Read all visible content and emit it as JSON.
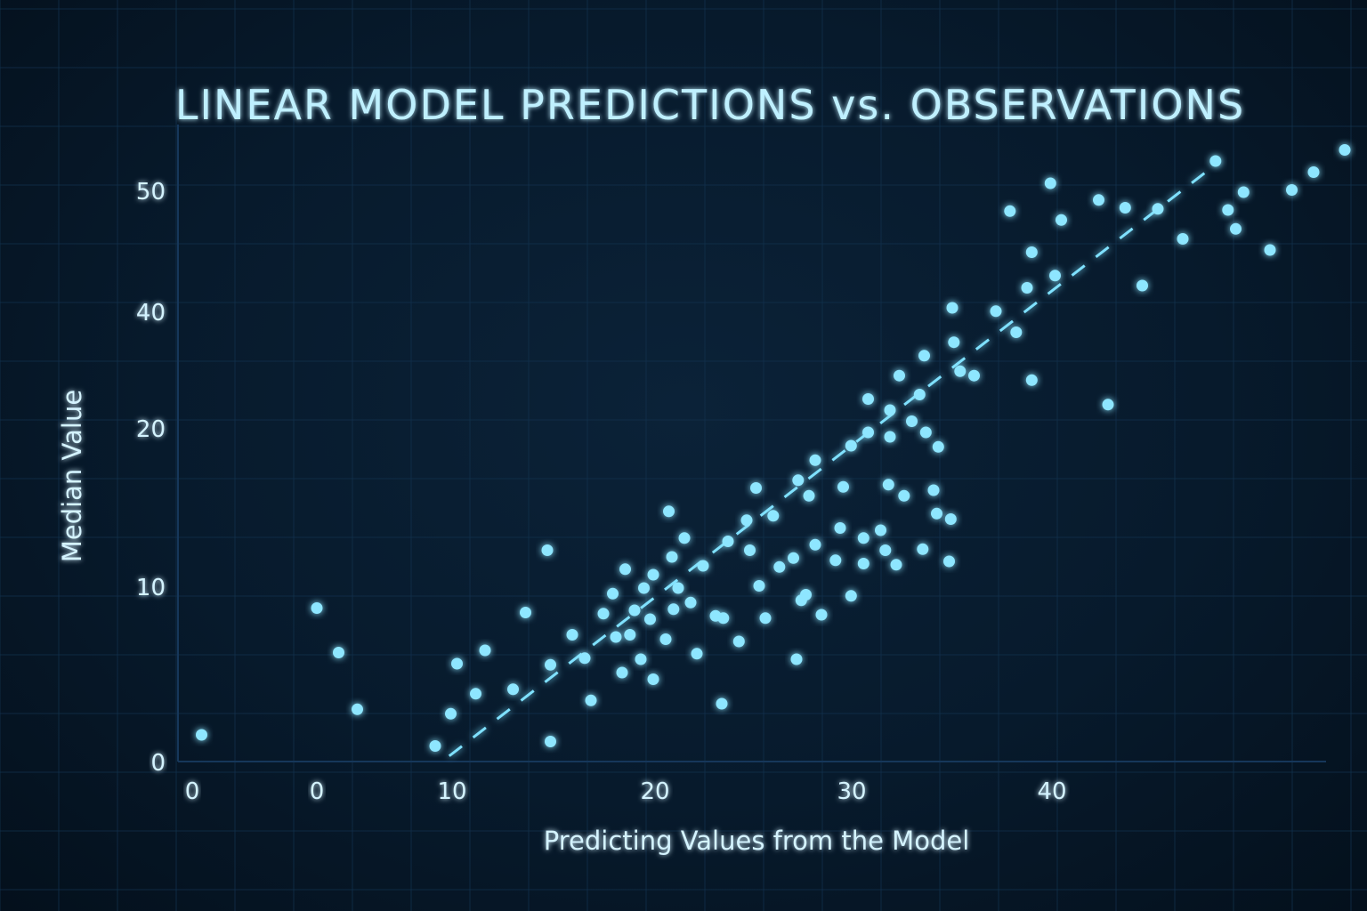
{
  "chart_data": {
    "type": "scatter",
    "title": "LINEAR MODEL PREDICTIONS vs. OBSERVATIONS",
    "xlabel": "Predicting Values from the Model",
    "ylabel": "Median Value",
    "x_ticks": [
      "0",
      "0",
      "10",
      "20",
      "30",
      "40"
    ],
    "y_ticks": [
      "0",
      "10",
      "20",
      "40",
      "50"
    ],
    "grid": true,
    "fit_line": {
      "style": "dashed",
      "x": [
        8.5,
        58.0
      ],
      "y": [
        0.5,
        54.0
      ]
    },
    "points": [
      [
        -7.4,
        2.4
      ],
      [
        0.0,
        13.8
      ],
      [
        1.4,
        9.8
      ],
      [
        2.6,
        4.7
      ],
      [
        7.6,
        1.4
      ],
      [
        8.6,
        4.3
      ],
      [
        9.0,
        8.8
      ],
      [
        10.2,
        6.1
      ],
      [
        10.8,
        10.0
      ],
      [
        12.6,
        6.5
      ],
      [
        13.4,
        13.4
      ],
      [
        15.0,
        8.7
      ],
      [
        15.0,
        1.8
      ],
      [
        14.8,
        19.0
      ],
      [
        16.4,
        11.4
      ],
      [
        17.2,
        9.3
      ],
      [
        17.6,
        5.5
      ],
      [
        18.4,
        13.3
      ],
      [
        19.0,
        15.1
      ],
      [
        19.2,
        11.2
      ],
      [
        19.6,
        8.0
      ],
      [
        20.1,
        11.4
      ],
      [
        19.8,
        17.3
      ],
      [
        20.4,
        13.6
      ],
      [
        20.8,
        9.2
      ],
      [
        21.0,
        15.6
      ],
      [
        21.4,
        12.8
      ],
      [
        21.6,
        16.8
      ],
      [
        21.6,
        7.4
      ],
      [
        22.4,
        11.0
      ],
      [
        22.6,
        22.5
      ],
      [
        22.8,
        18.4
      ],
      [
        22.9,
        13.7
      ],
      [
        23.2,
        15.6
      ],
      [
        23.6,
        20.1
      ],
      [
        24.0,
        14.3
      ],
      [
        24.4,
        9.7
      ],
      [
        24.8,
        17.6
      ],
      [
        25.6,
        13.1
      ],
      [
        26.0,
        5.2
      ],
      [
        26.1,
        12.9
      ],
      [
        26.4,
        19.8
      ],
      [
        27.1,
        10.8
      ],
      [
        27.6,
        21.7
      ],
      [
        27.8,
        19.0
      ],
      [
        28.2,
        24.6
      ],
      [
        28.4,
        15.8
      ],
      [
        28.8,
        12.9
      ],
      [
        29.3,
        22.1
      ],
      [
        29.7,
        17.5
      ],
      [
        30.6,
        18.3
      ],
      [
        30.8,
        9.2
      ],
      [
        30.9,
        25.3
      ],
      [
        31.1,
        14.5
      ],
      [
        31.4,
        15.0
      ],
      [
        31.6,
        23.9
      ],
      [
        32.0,
        27.1
      ],
      [
        32.0,
        19.5
      ],
      [
        32.4,
        13.2
      ],
      [
        33.3,
        18.1
      ],
      [
        33.6,
        21.0
      ],
      [
        33.8,
        24.7
      ],
      [
        34.3,
        28.4
      ],
      [
        34.3,
        14.9
      ],
      [
        35.1,
        17.8
      ],
      [
        35.1,
        20.1
      ],
      [
        35.4,
        29.6
      ],
      [
        35.4,
        32.6
      ],
      [
        36.2,
        20.8
      ],
      [
        36.5,
        19.0
      ],
      [
        36.7,
        24.9
      ],
      [
        36.8,
        31.6
      ],
      [
        36.8,
        29.2
      ],
      [
        37.2,
        17.7
      ],
      [
        37.4,
        34.7
      ],
      [
        37.7,
        23.9
      ],
      [
        38.2,
        30.6
      ],
      [
        38.7,
        33.0
      ],
      [
        38.9,
        19.1
      ],
      [
        39.0,
        36.5
      ],
      [
        39.1,
        29.6
      ],
      [
        39.6,
        24.4
      ],
      [
        39.8,
        22.3
      ],
      [
        39.9,
        28.3
      ],
      [
        40.6,
        18.0
      ],
      [
        40.7,
        21.8
      ],
      [
        40.8,
        40.8
      ],
      [
        40.9,
        37.7
      ],
      [
        41.3,
        35.1
      ],
      [
        42.2,
        34.7
      ],
      [
        43.6,
        40.5
      ],
      [
        44.5,
        49.5
      ],
      [
        44.9,
        38.6
      ],
      [
        45.6,
        42.6
      ],
      [
        45.9,
        45.8
      ],
      [
        45.9,
        34.3
      ],
      [
        47.1,
        52.0
      ],
      [
        47.4,
        43.7
      ],
      [
        47.8,
        48.7
      ],
      [
        50.2,
        50.5
      ],
      [
        50.8,
        32.1
      ],
      [
        51.9,
        49.8
      ],
      [
        53.0,
        42.8
      ],
      [
        54.0,
        49.7
      ],
      [
        55.6,
        47.0
      ],
      [
        57.7,
        54.0
      ],
      [
        58.5,
        49.6
      ],
      [
        59.0,
        47.9
      ],
      [
        59.5,
        51.2
      ],
      [
        61.2,
        46.0
      ],
      [
        62.6,
        51.4
      ],
      [
        64.0,
        53.0
      ],
      [
        66.0,
        55.0
      ]
    ]
  }
}
